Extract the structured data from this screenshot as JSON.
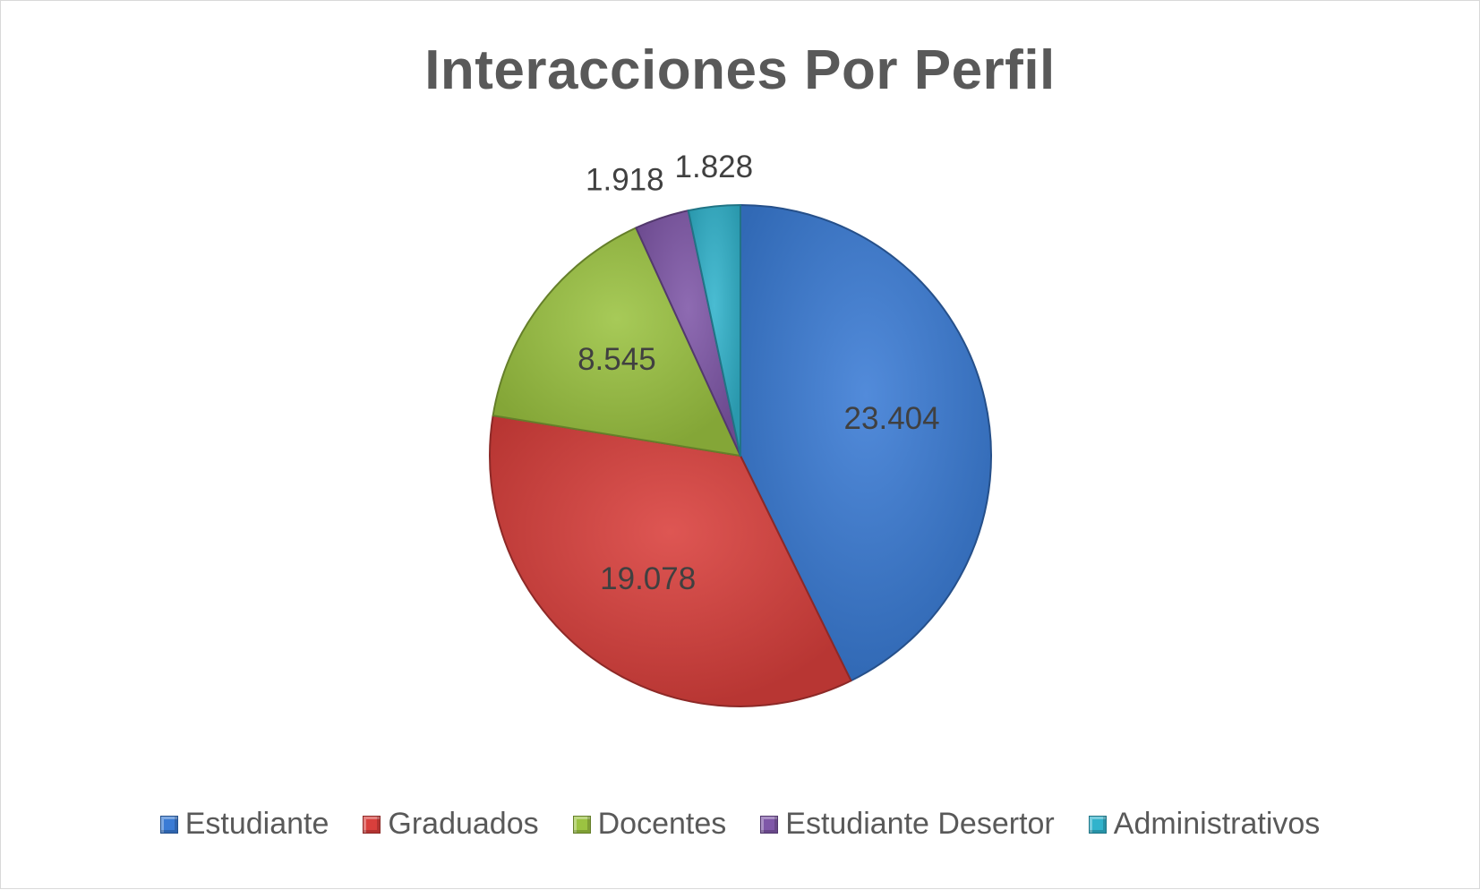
{
  "chart_data": {
    "type": "pie",
    "title": "Interacciones Por Perfil",
    "categories": [
      "Estudiante",
      "Graduados",
      "Docentes",
      "Estudiante Desertor",
      "Administrativos"
    ],
    "values": [
      23404,
      19078,
      8545,
      1918,
      1828
    ],
    "value_labels": [
      "23.404",
      "19.078",
      "8.545",
      "1.918",
      "1.828"
    ],
    "colors": [
      "#3a7bd5",
      "#d93f3c",
      "#9bc341",
      "#7f57a8",
      "#31b3cc"
    ],
    "start_angle_deg": 0,
    "direction": "clockwise",
    "legend_position": "bottom"
  }
}
